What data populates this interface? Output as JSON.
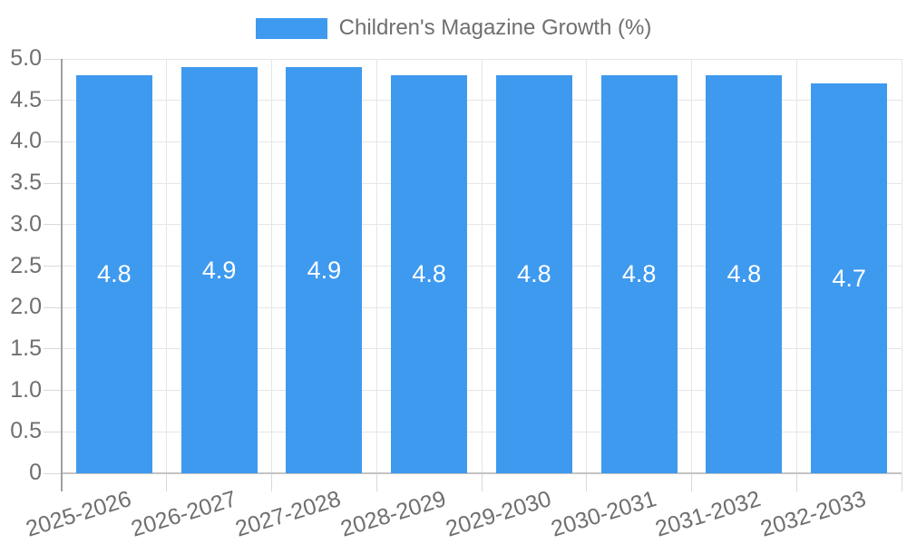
{
  "chart_data": {
    "type": "bar",
    "legend": "Children's Magazine Growth (%)",
    "legend_position": "top-center",
    "categories": [
      "2025-2026",
      "2026-2027",
      "2027-2028",
      "2028-2029",
      "2029-2030",
      "2030-2031",
      "2031-2032",
      "2032-2033"
    ],
    "values": [
      4.8,
      4.9,
      4.9,
      4.8,
      4.8,
      4.8,
      4.8,
      4.7
    ],
    "bar_labels": [
      "4.8",
      "4.9",
      "4.9",
      "4.8",
      "4.8",
      "4.8",
      "4.8",
      "4.7"
    ],
    "xlabel": "",
    "ylabel": "",
    "ylim": [
      0,
      5
    ],
    "ytick_labels": [
      "0",
      "0.5",
      "1.0",
      "1.5",
      "2.0",
      "2.5",
      "3.0",
      "3.5",
      "4.0",
      "4.5",
      "5.0"
    ],
    "grid": "horizontal-and-vertical",
    "colors": {
      "bar": "#3E9AEF",
      "grid": "#e6e6e6",
      "tick": "#d9d9d9",
      "axis": "#a0a0a0",
      "baseline": "#c4c4c4",
      "text": "#6f6f6f",
      "legend_text": "#6f6f6f",
      "bar_label": "#ffffff",
      "background": "#ffffff"
    }
  }
}
